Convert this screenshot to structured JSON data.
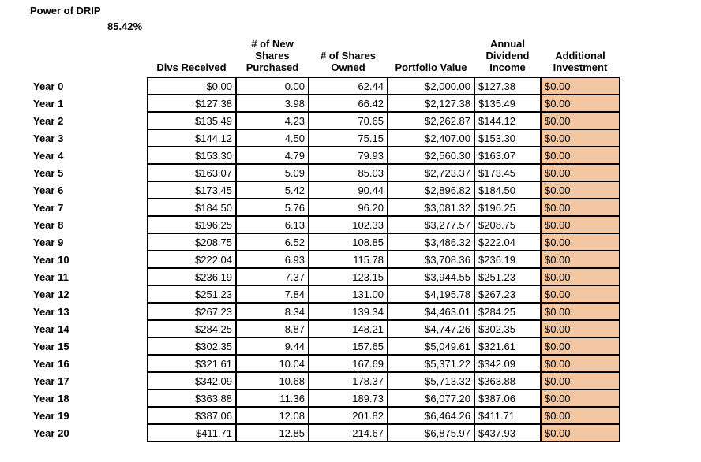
{
  "title": "Power of DRIP",
  "percent": "85.42%",
  "headers": {
    "c0": "",
    "c1": "Divs Received",
    "c2": "# of New\nShares\nPurchased",
    "c3": "# of Shares\nOwned",
    "c4": "Portfolio Value",
    "c5": "Annual\nDividend\nIncome",
    "c6": "Additional\nInvestment"
  },
  "highlight_color": "#f4c7a3",
  "cell_bg": "#ffffff",
  "rows": [
    {
      "y": "Year 0",
      "d": "$0.00",
      "n": "0.00",
      "s": "62.44",
      "p": "$2,000.00",
      "a": "$127.38",
      "x": "$0.00"
    },
    {
      "y": "Year 1",
      "d": "$127.38",
      "n": "3.98",
      "s": "66.42",
      "p": "$2,127.38",
      "a": "$135.49",
      "x": "$0.00"
    },
    {
      "y": "Year 2",
      "d": "$135.49",
      "n": "4.23",
      "s": "70.65",
      "p": "$2,262.87",
      "a": "$144.12",
      "x": "$0.00"
    },
    {
      "y": "Year 3",
      "d": "$144.12",
      "n": "4.50",
      "s": "75.15",
      "p": "$2,407.00",
      "a": "$153.30",
      "x": "$0.00"
    },
    {
      "y": "Year 4",
      "d": "$153.30",
      "n": "4.79",
      "s": "79.93",
      "p": "$2,560.30",
      "a": "$163.07",
      "x": "$0.00"
    },
    {
      "y": "Year 5",
      "d": "$163.07",
      "n": "5.09",
      "s": "85.03",
      "p": "$2,723.37",
      "a": "$173.45",
      "x": "$0.00"
    },
    {
      "y": "Year 6",
      "d": "$173.45",
      "n": "5.42",
      "s": "90.44",
      "p": "$2,896.82",
      "a": "$184.50",
      "x": "$0.00"
    },
    {
      "y": "Year 7",
      "d": "$184.50",
      "n": "5.76",
      "s": "96.20",
      "p": "$3,081.32",
      "a": "$196.25",
      "x": "$0.00"
    },
    {
      "y": "Year 8",
      "d": "$196.25",
      "n": "6.13",
      "s": "102.33",
      "p": "$3,277.57",
      "a": "$208.75",
      "x": "$0.00"
    },
    {
      "y": "Year 9",
      "d": "$208.75",
      "n": "6.52",
      "s": "108.85",
      "p": "$3,486.32",
      "a": "$222.04",
      "x": "$0.00"
    },
    {
      "y": "Year 10",
      "d": "$222.04",
      "n": "6.93",
      "s": "115.78",
      "p": "$3,708.36",
      "a": "$236.19",
      "x": "$0.00"
    },
    {
      "y": "Year 11",
      "d": "$236.19",
      "n": "7.37",
      "s": "123.15",
      "p": "$3,944.55",
      "a": "$251.23",
      "x": "$0.00"
    },
    {
      "y": "Year 12",
      "d": "$251.23",
      "n": "7.84",
      "s": "131.00",
      "p": "$4,195.78",
      "a": "$267.23",
      "x": "$0.00"
    },
    {
      "y": "Year 13",
      "d": "$267.23",
      "n": "8.34",
      "s": "139.34",
      "p": "$4,463.01",
      "a": "$284.25",
      "x": "$0.00"
    },
    {
      "y": "Year 14",
      "d": "$284.25",
      "n": "8.87",
      "s": "148.21",
      "p": "$4,747.26",
      "a": "$302.35",
      "x": "$0.00"
    },
    {
      "y": "Year 15",
      "d": "$302.35",
      "n": "9.44",
      "s": "157.65",
      "p": "$5,049.61",
      "a": "$321.61",
      "x": "$0.00"
    },
    {
      "y": "Year 16",
      "d": "$321.61",
      "n": "10.04",
      "s": "167.69",
      "p": "$5,371.22",
      "a": "$342.09",
      "x": "$0.00"
    },
    {
      "y": "Year 17",
      "d": "$342.09",
      "n": "10.68",
      "s": "178.37",
      "p": "$5,713.32",
      "a": "$363.88",
      "x": "$0.00"
    },
    {
      "y": "Year 18",
      "d": "$363.88",
      "n": "11.36",
      "s": "189.73",
      "p": "$6,077.20",
      "a": "$387.06",
      "x": "$0.00"
    },
    {
      "y": "Year 19",
      "d": "$387.06",
      "n": "12.08",
      "s": "201.82",
      "p": "$6,464.26",
      "a": "$411.71",
      "x": "$0.00"
    },
    {
      "y": "Year 20",
      "d": "$411.71",
      "n": "12.85",
      "s": "214.67",
      "p": "$6,875.97",
      "a": "$437.93",
      "x": "$0.00"
    }
  ]
}
